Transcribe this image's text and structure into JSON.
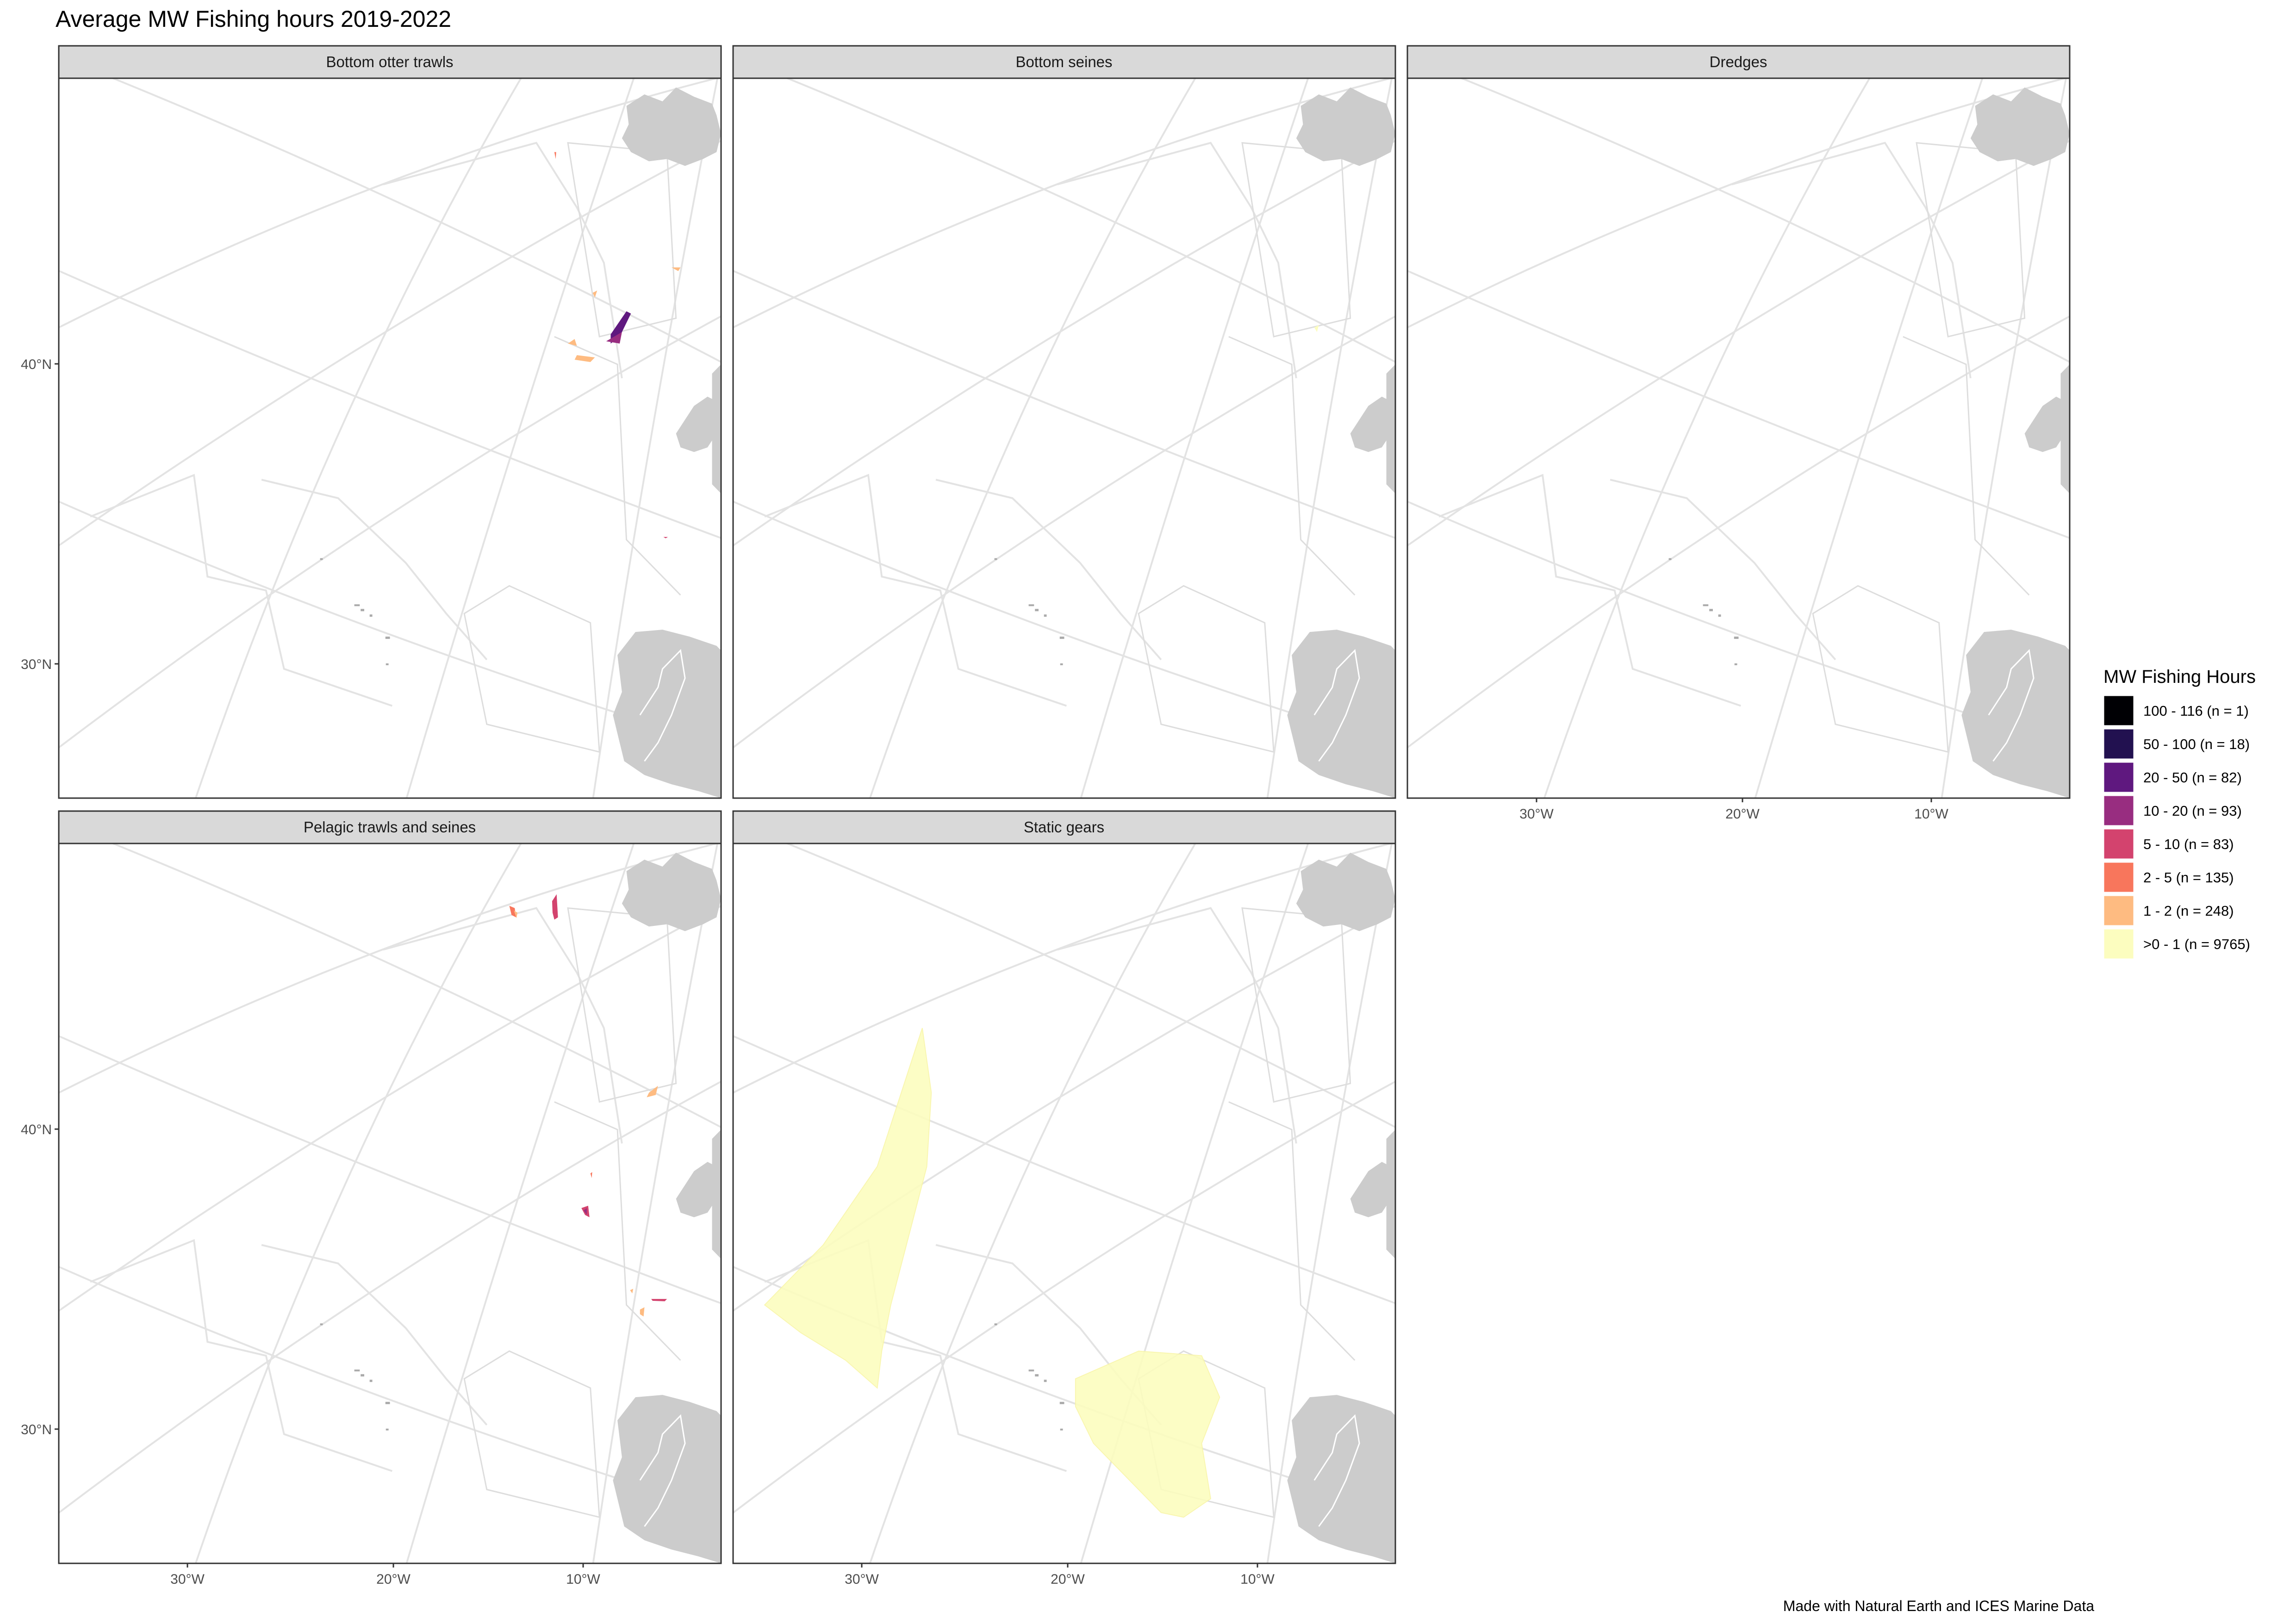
{
  "title": "Average MW Fishing hours 2019-2022",
  "caption": "Made with Natural Earth and ICES Marine Data",
  "panels": [
    {
      "label": "Bottom otter trawls"
    },
    {
      "label": "Bottom seines"
    },
    {
      "label": "Dredges"
    },
    {
      "label": "Pelagic trawls and seines"
    },
    {
      "label": "Static gears"
    }
  ],
  "axes": {
    "y_ticks": [
      "40°N",
      "30°N"
    ],
    "x_ticks": [
      "30°W",
      "20°W",
      "10°W"
    ]
  },
  "legend": {
    "title": "MW Fishing Hours",
    "items": [
      {
        "label": "100 - 116 (n = 1)",
        "color": "#000004"
      },
      {
        "label": "50 - 100 (n = 18)",
        "color": "#221150"
      },
      {
        "label": "20 - 50 (n = 82)",
        "color": "#5f187f"
      },
      {
        "label": "10 - 20 (n = 93)",
        "color": "#982d80"
      },
      {
        "label": "5 - 10 (n = 83)",
        "color": "#d3436e"
      },
      {
        "label": "2 - 5 (n = 135)",
        "color": "#f8765c"
      },
      {
        "label": "1 - 2 (n = 248)",
        "color": "#febb81"
      },
      {
        "label": ">0 - 1 (n = 9765)",
        "color": "#fcfdbf"
      }
    ]
  },
  "colors": {
    "land": "#cccccc",
    "graticule": "#e3e3e3",
    "strip": "#d9d9d9",
    "panel_border": "#333333"
  }
}
